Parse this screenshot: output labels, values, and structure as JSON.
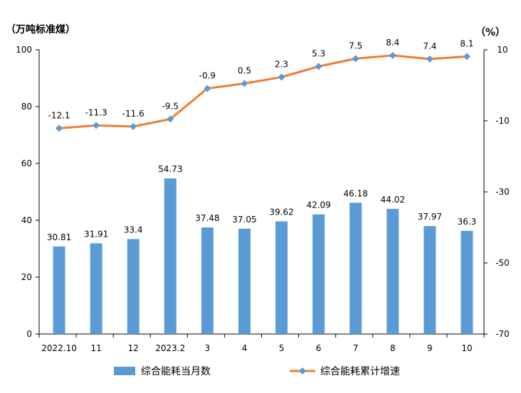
{
  "chart_data": {
    "type": "bar+line",
    "left_unit": "（万吨标准煤）",
    "right_unit": "（%）",
    "categories": [
      "2022.10",
      "11",
      "12",
      "2023.2",
      "3",
      "4",
      "5",
      "6",
      "7",
      "8",
      "9",
      "10"
    ],
    "series": [
      {
        "name": "综合能耗当月数",
        "type": "bar",
        "axis": "left",
        "color": "#5b9bd5",
        "values": [
          30.81,
          31.91,
          33.4,
          54.73,
          37.48,
          37.05,
          39.62,
          42.09,
          46.18,
          44.02,
          37.97,
          36.3
        ],
        "labels": [
          "30.81",
          "31.91",
          "33.4",
          "54.73",
          "37.48",
          "37.05",
          "39.62",
          "42.09",
          "46.18",
          "44.02",
          "37.97",
          "36.3"
        ]
      },
      {
        "name": "综合能耗累计增速",
        "type": "line",
        "axis": "right",
        "color": "#ed7d31",
        "marker_color": "#5b9bd5",
        "values": [
          -12.1,
          -11.3,
          -11.6,
          -9.5,
          -0.9,
          0.5,
          2.3,
          5.3,
          7.5,
          8.4,
          7.4,
          8.1
        ],
        "labels": [
          "-12.1",
          "-11.3",
          "-11.6",
          "-9.5",
          "-0.9",
          "0.5",
          "2.3",
          "5.3",
          "7.5",
          "8.4",
          "7.4",
          "8.1"
        ]
      }
    ],
    "left_axis": {
      "min": 0,
      "max": 100,
      "ticks": [
        0,
        20,
        40,
        60,
        80,
        100
      ],
      "tick_labels": [
        "0",
        "20",
        "40",
        "60",
        "80",
        "100"
      ]
    },
    "right_axis": {
      "min": -70,
      "max": 10,
      "ticks": [
        -70,
        -50,
        -30,
        -10,
        10
      ],
      "tick_labels": [
        "-70",
        "-50",
        "-30",
        "-10",
        "10"
      ]
    },
    "grid": false,
    "legend": "bottom"
  }
}
